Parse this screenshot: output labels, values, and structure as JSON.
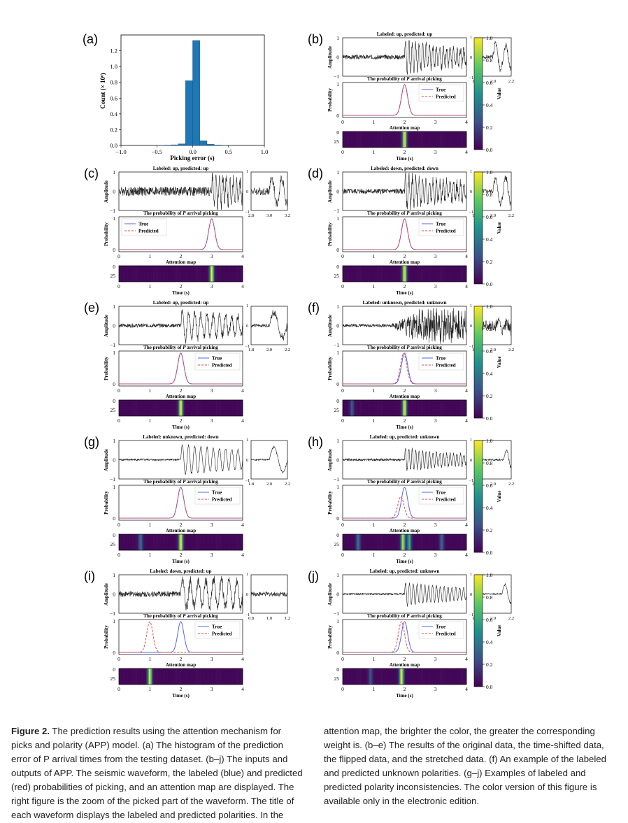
{
  "histogram": {
    "label": "(a)",
    "ylabel": "Count (× 10⁶)",
    "xlabel": "Picking error (s)",
    "xticks": [
      "−1.0",
      "−0.5",
      "0.0",
      "0.5",
      "1.0"
    ],
    "yticks": [
      "0.0",
      "0.2",
      "0.4",
      "0.6",
      "0.8",
      "1.0",
      "1.2"
    ],
    "bar_color": "#1f77b4"
  },
  "chart_data": {
    "type": "bar",
    "categories": [
      "-0.45",
      "-0.35",
      "-0.25",
      "-0.15",
      "-0.05",
      "0.05",
      "0.15",
      "0.25",
      "0.35",
      "0.45"
    ],
    "values": [
      0.002,
      0.004,
      0.008,
      0.02,
      0.82,
      1.33,
      0.06,
      0.015,
      0.005,
      0.002
    ],
    "xlabel": "Picking error (s)",
    "ylabel": "Count (× 10⁶)",
    "xlim": [
      -1.0,
      1.0
    ],
    "ylim": [
      0,
      1.4
    ]
  },
  "common": {
    "amplitude_label": "Amplitude",
    "probability_label": "Probability",
    "attention_label": "Attention map",
    "prob_title_prefix": "The probability of ",
    "prob_title_italic": "P",
    "prob_title_suffix": " arrival picking",
    "time_label": "Time (s)",
    "legend_true": "True",
    "legend_predicted": "Predicted",
    "time_ticks": [
      "0",
      "1",
      "2",
      "3",
      "4"
    ],
    "amp_ticks": [
      "1",
      "0",
      "−1"
    ],
    "prob_ticks": [
      "1",
      "0"
    ],
    "attn_ticks": [
      "0",
      "25"
    ],
    "colorbar_label": "Value",
    "colorbar_ticks": [
      "1.0",
      "0.8",
      "0.6",
      "0.4",
      "0.2",
      "0.0"
    ],
    "true_color": "#5566ee",
    "pred_color": "#ee4444"
  },
  "panels": [
    {
      "label": "(b)",
      "title": "Labeled: up, predicted: up",
      "zoom_ticks": [
        "1.8",
        "2.0",
        "2.2"
      ]
    },
    {
      "label": "(c)",
      "title": "Labeled: up, predicted: up",
      "zoom_ticks": [
        "2.8",
        "3.0",
        "3.2"
      ]
    },
    {
      "label": "(d)",
      "title": "Labeled: down, predicted: down",
      "zoom_ticks": [
        "1.8",
        "2.0",
        "2.2"
      ]
    },
    {
      "label": "(e)",
      "title": "Labeled: up, predicted: up",
      "zoom_ticks": [
        "1.8",
        "2.0",
        "2.2"
      ]
    },
    {
      "label": "(f)",
      "title": "Labeled: unknown, predicted: unknown",
      "zoom_ticks": [
        "1.8",
        "2.0",
        "2.2"
      ]
    },
    {
      "label": "(g)",
      "title": "Labeled: unknown, predicted: down",
      "zoom_ticks": [
        "1.8",
        "2.0",
        "2.2"
      ]
    },
    {
      "label": "(h)",
      "title": "Labeled: up, predicted: unknown",
      "zoom_ticks": [
        "1.8",
        "2.0",
        "2.2"
      ]
    },
    {
      "label": "(i)",
      "title": "Labeled: down, predicted: up",
      "zoom_ticks": [
        "0.8",
        "1.0",
        "1.2"
      ]
    },
    {
      "label": "(j)",
      "title": "Labeled: up, predicted: unknown",
      "zoom_ticks": [
        "1.8",
        "2.0",
        "2.2"
      ]
    }
  ],
  "caption": {
    "heading": "Figure 2.",
    "text": " The prediction results using the attention mechanism for picks and polarity (APP) model. (a) The histogram of the prediction error of P arrival times from the testing dataset. (b–j) The inputs and outputs of APP. The seismic waveform, the labeled (blue) and predicted (red) probabilities of picking, and an attention map are displayed. The right figure is the zoom of the picked part of the waveform. The title of each waveform displays the labeled and predicted polarities. In the attention map, the brighter the color, the greater the corresponding weight is. (b–e) The results of the original data, the time-shifted data, the flipped data, and the stretched data. (f) An example of the labeled and predicted unknown polarities. (g–j) Examples of labeled and predicted polarity inconsistencies. The color version of this figure is available only in the electronic edition."
  }
}
